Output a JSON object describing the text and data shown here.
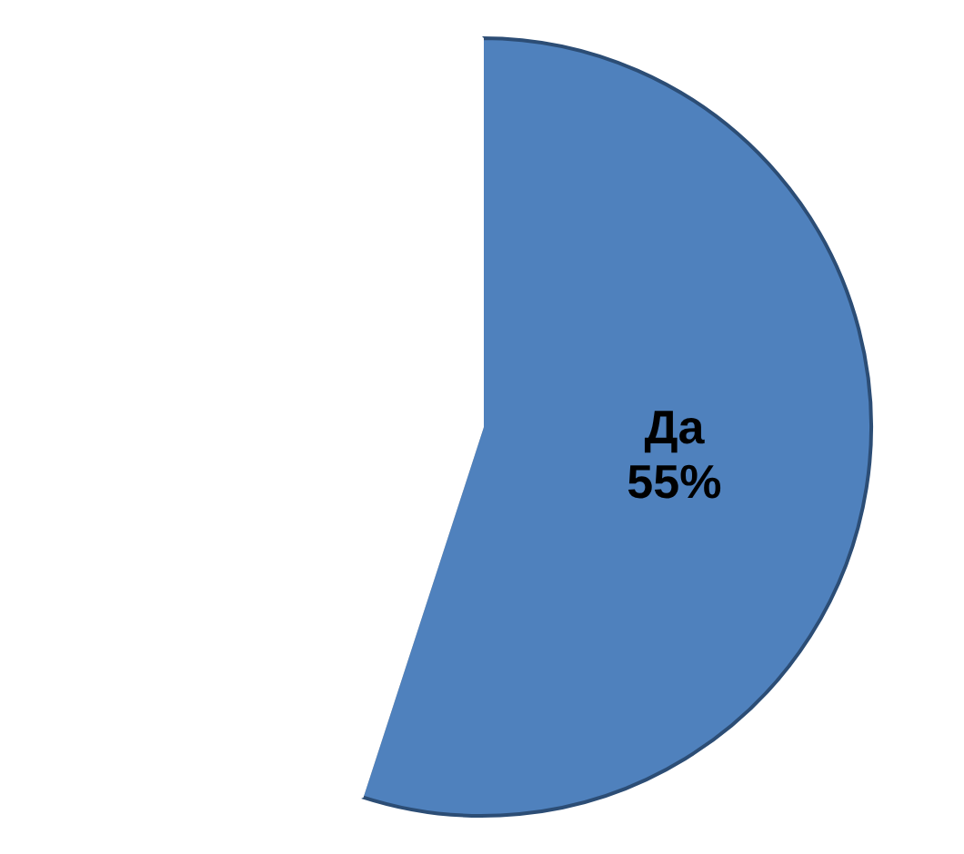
{
  "chart_data": {
    "type": "pie",
    "categories": [
      "Да",
      null
    ],
    "values": [
      55,
      45
    ],
    "colors": [
      "#4f81bd",
      "#ffffff"
    ],
    "value_labels": [
      "55%",
      null
    ],
    "legend": false
  }
}
